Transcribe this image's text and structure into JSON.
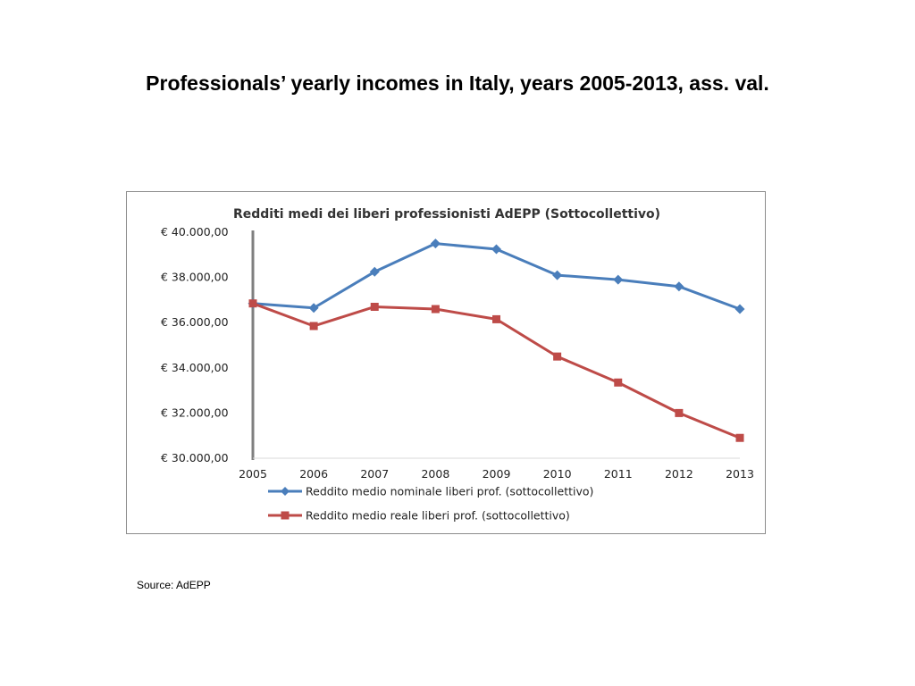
{
  "slide": {
    "title": "Professionals’ yearly incomes in Italy, years 2005-2013, ass. val.",
    "source": "Source: AdEPP"
  },
  "chart_data": {
    "type": "line",
    "title": "Redditi medi dei liberi professionisti AdEPP (Sottocollettivo)",
    "xlabel": "",
    "ylabel": "",
    "x": [
      "2005",
      "2006",
      "2007",
      "2008",
      "2009",
      "2010",
      "2011",
      "2012",
      "2013"
    ],
    "ylim": [
      30000,
      40000
    ],
    "yticks": [
      30000,
      32000,
      34000,
      36000,
      38000,
      40000
    ],
    "ytick_labels": [
      "€ 30.000,00",
      "€ 32.000,00",
      "€ 34.000,00",
      "€ 36.000,00",
      "€ 38.000,00",
      "€ 40.000,00"
    ],
    "grid": false,
    "legend_position": "bottom",
    "series": [
      {
        "name": "Reddito medio nominale liberi prof. (sottocollettivo)",
        "color": "#4a7ebb",
        "marker": "diamond",
        "values": [
          36850,
          36650,
          38250,
          39500,
          39250,
          38100,
          37900,
          37600,
          36600
        ]
      },
      {
        "name": "Reddito medio reale liberi prof. (sottocollettivo)",
        "color": "#be4b48",
        "marker": "square",
        "values": [
          36850,
          35850,
          36700,
          36600,
          36150,
          34500,
          33350,
          32000,
          30900
        ]
      }
    ]
  }
}
